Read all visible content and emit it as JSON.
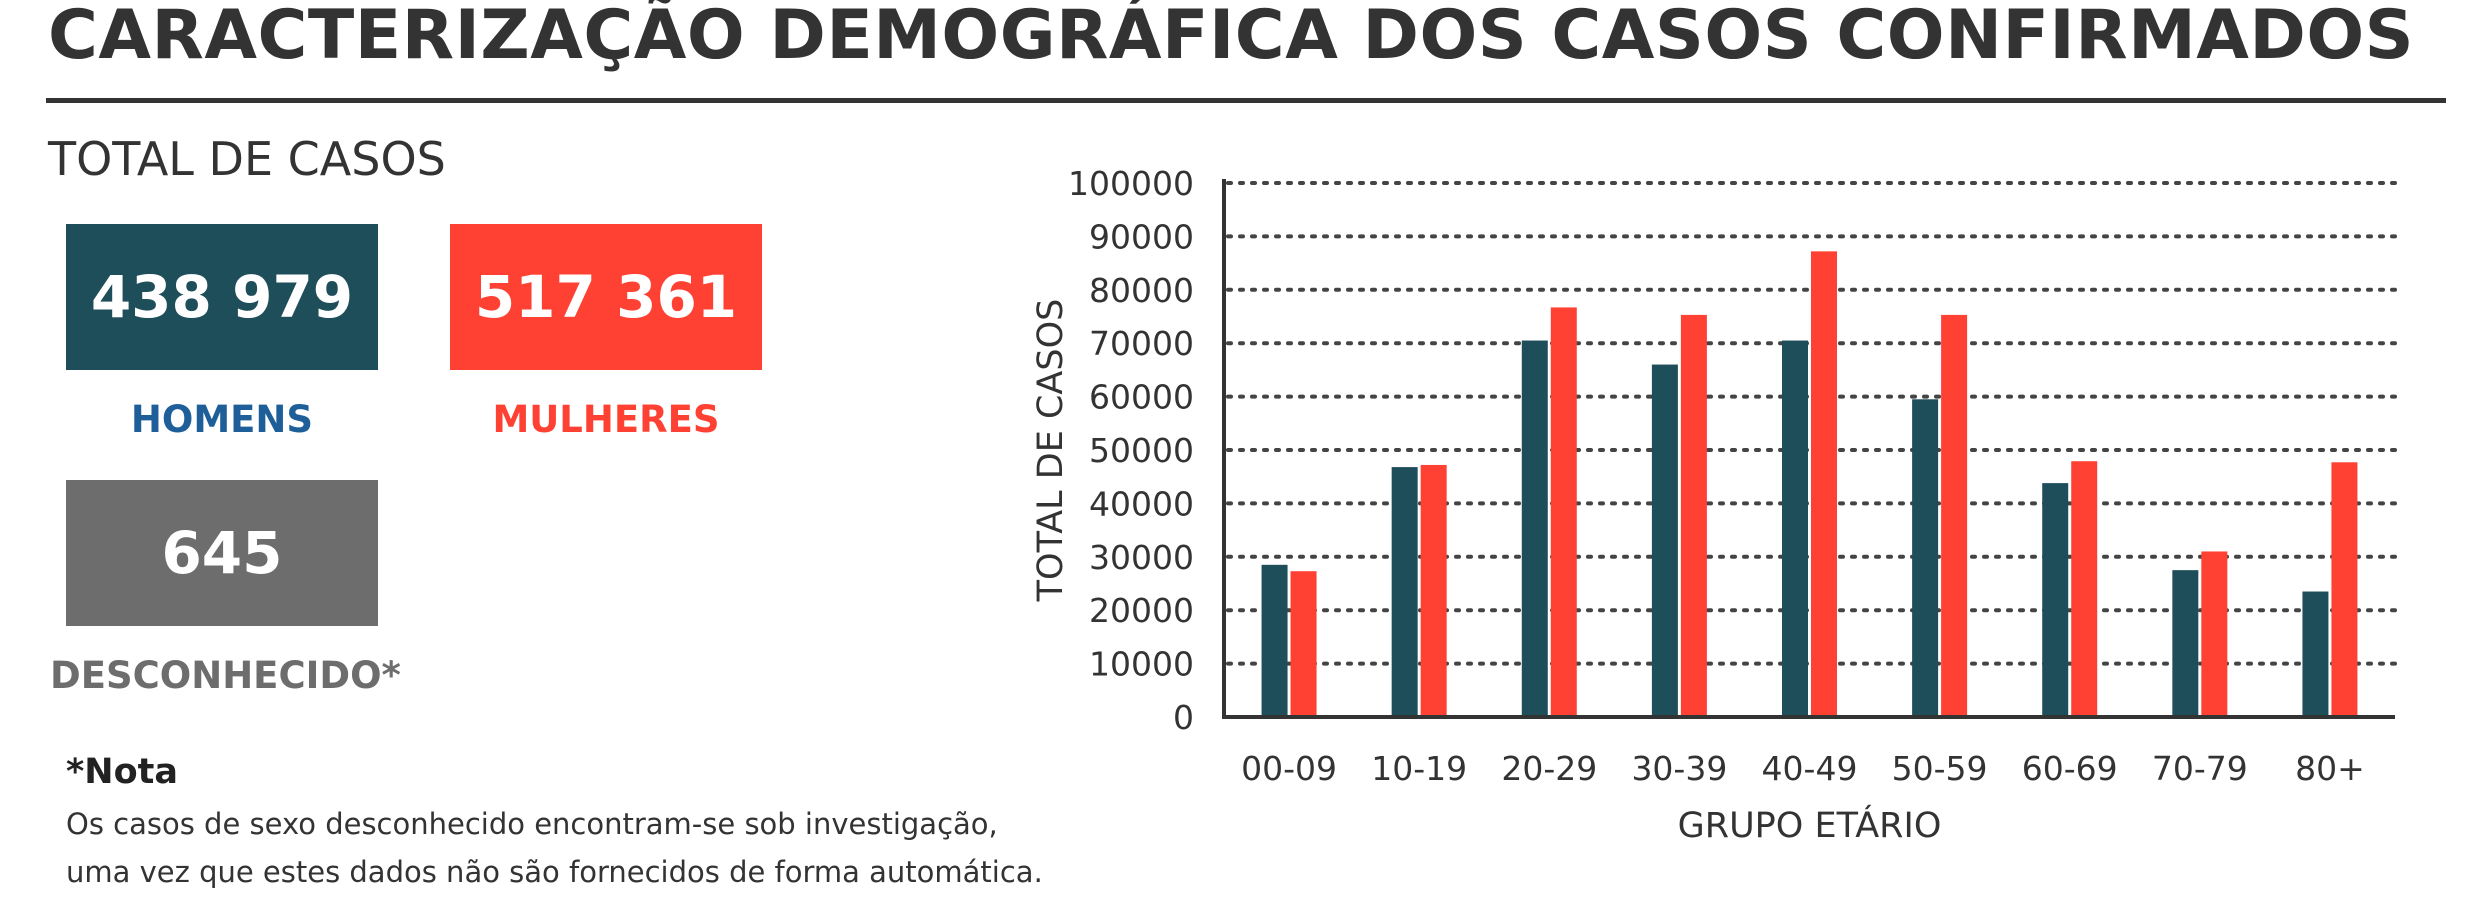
{
  "page": {
    "title": "CARACTERIZAÇÃO DEMOGRÁFICA DOS CASOS CONFIRMADOS"
  },
  "totals": {
    "heading": "TOTAL DE CASOS",
    "men": {
      "value": "438 979",
      "label": "HOMENS"
    },
    "women": {
      "value": "517 361",
      "label": "MULHERES"
    },
    "unknown": {
      "value": "645",
      "label": "DESCONHECIDO*"
    }
  },
  "note": {
    "title": "*Nota",
    "line1": "Os casos de sexo desconhecido encontram-se sob investigação,",
    "line2": "uma vez que estes dados não são fornecidos de forma automática."
  },
  "colors": {
    "men": "#1f4e5b",
    "women": "#ff4133",
    "unknown": "#6d6d6d",
    "men_label": "#1f5f99",
    "women_label": "#ff4133",
    "unknown_label": "#6d6d6d",
    "axis": "#333333"
  },
  "chart_data": {
    "type": "bar",
    "title": "",
    "xlabel": "GRUPO ETÁRIO",
    "ylabel": "TOTAL DE CASOS",
    "ylim": [
      0,
      100000
    ],
    "yticks": [
      0,
      10000,
      20000,
      30000,
      40000,
      50000,
      60000,
      70000,
      80000,
      90000,
      100000
    ],
    "grid": "horizontal dotted",
    "legend": "none",
    "categories": [
      "00-09",
      "10-19",
      "20-29",
      "30-39",
      "40-49",
      "50-59",
      "60-69",
      "70-79",
      "80+"
    ],
    "series": [
      {
        "values": [
          28500,
          46800,
          70500,
          66000,
          70500,
          59500,
          43800,
          27500,
          23500
        ]
      },
      {
        "values": [
          27300,
          47200,
          76700,
          75300,
          87200,
          75300,
          47900,
          31000,
          47700
        ]
      }
    ]
  }
}
